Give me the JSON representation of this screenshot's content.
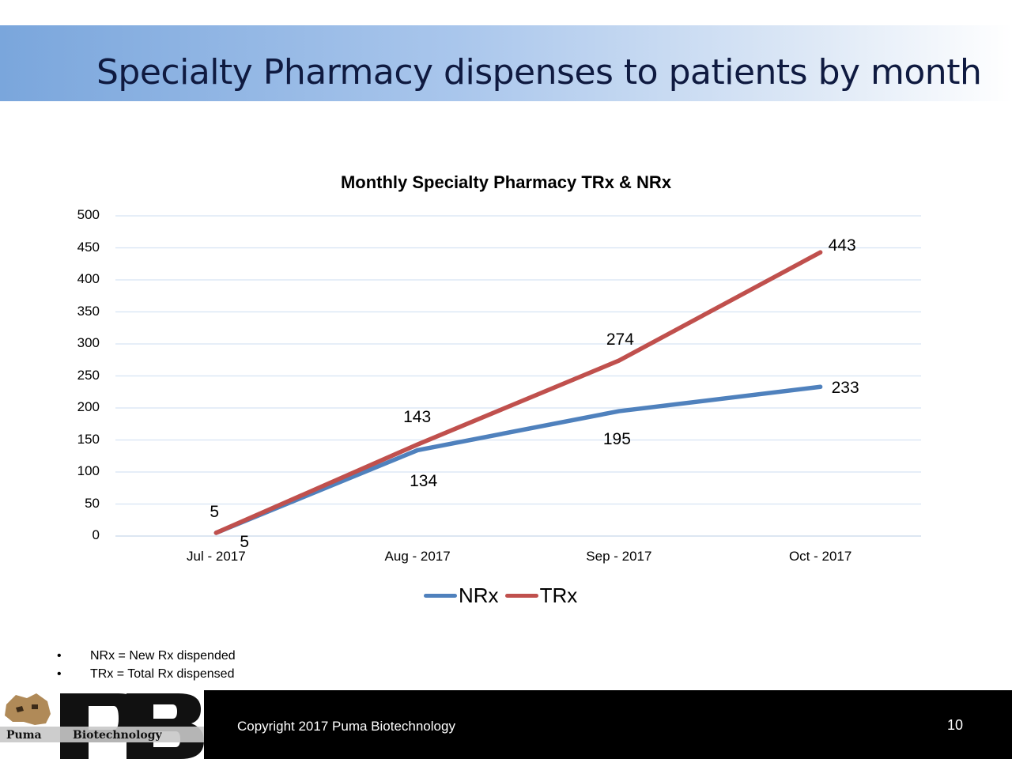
{
  "slide": {
    "title": "Specialty Pharmacy dispenses to patients by month",
    "notes": [
      "NRx = New Rx dispended",
      "TRx = Total Rx dispensed"
    ],
    "bullet": "•",
    "copyright": "Copyright 2017 Puma Biotechnology",
    "page_number": "10",
    "logo": {
      "word1": "Puma",
      "word2": "Biotechnology",
      "letters": "PB"
    }
  },
  "colors": {
    "nrx": "#4f81bd",
    "trx": "#c0504d",
    "grid": "#d6e3f3",
    "title_band": "#7aa6dc"
  },
  "chart_data": {
    "type": "line",
    "title": "Monthly Specialty Pharmacy TRx & NRx",
    "categories": [
      "Jul - 2017",
      "Aug - 2017",
      "Sep - 2017",
      "Oct - 2017"
    ],
    "series": [
      {
        "name": "NRx",
        "values": [
          5,
          134,
          195,
          233
        ],
        "labels": [
          "5",
          "134",
          "195",
          "233"
        ]
      },
      {
        "name": "TRx",
        "values": [
          5,
          143,
          274,
          443
        ],
        "labels": [
          "5",
          "143",
          "274",
          "443"
        ]
      }
    ],
    "yticks": [
      "0",
      "50",
      "100",
      "150",
      "200",
      "250",
      "300",
      "350",
      "400",
      "450",
      "500"
    ],
    "ylim": [
      0,
      500
    ],
    "grid": true,
    "legend": "bottom"
  }
}
